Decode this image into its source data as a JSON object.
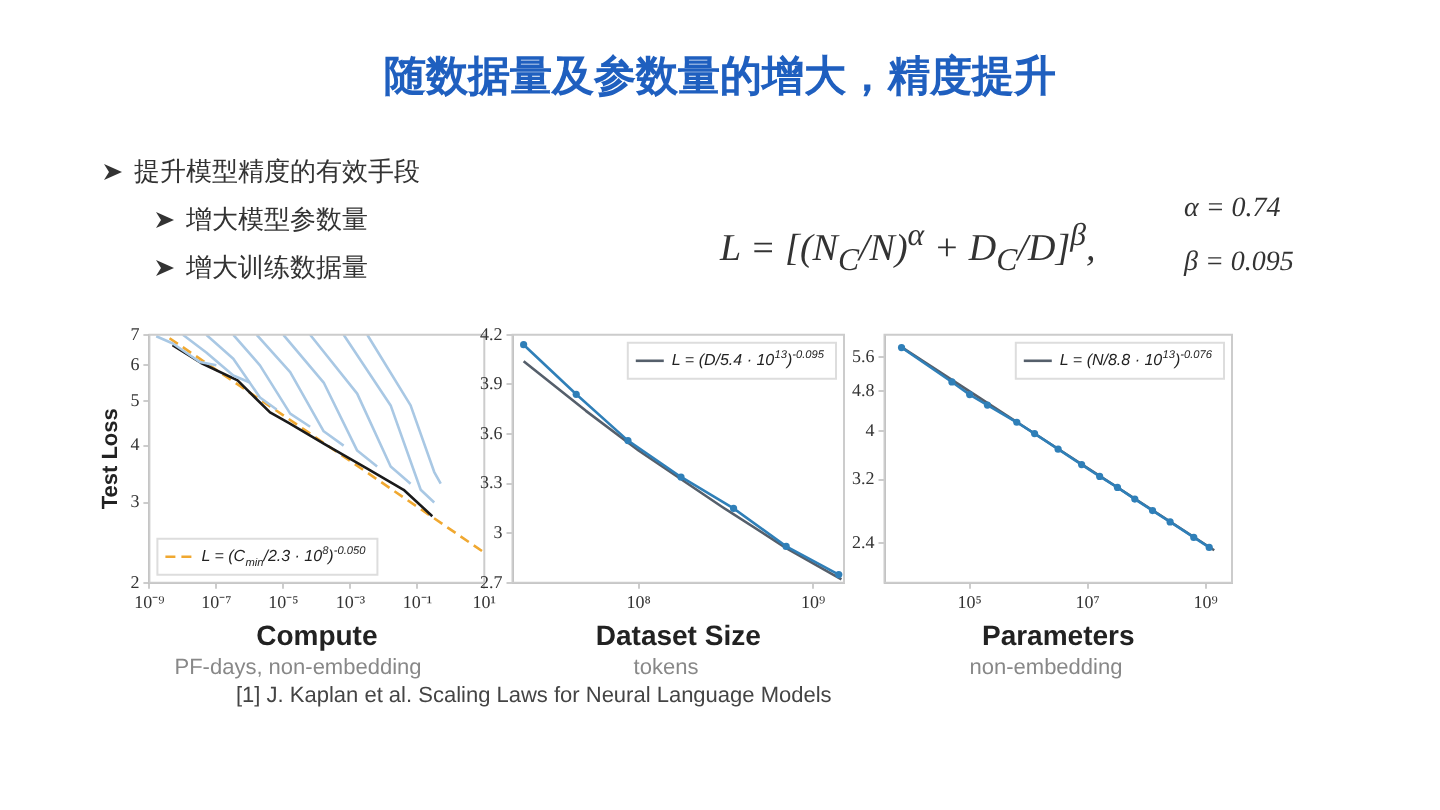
{
  "chart_data": [
    {
      "type": "other",
      "title": "随数据量及参数量的增大，精度提升",
      "annotations": [
        "提升模型精度的有效手段",
        "增大模型参数量",
        "增大训练数据量",
        "L = [(N$_{C}$/N)$^{α}$ + D$_{C}$/D]$^{β}$,",
        "α = 0.74",
        "β = 0.095",
        "[1] J. Kaplan et al. Scaling Laws for Neural Language Models"
      ]
    },
    {
      "type": "line",
      "log": "xy",
      "xlabel": "Compute",
      "ylabel": "Test Loss",
      "annotations": [
        "PF-days, non-embedding"
      ],
      "xlim": [
        1e-09,
        10
      ],
      "ylim": [
        2,
        7
      ],
      "xticks": [
        {
          "value": 1e-09,
          "label": "10⁻⁹"
        },
        {
          "value": 1e-07,
          "label": "10⁻⁷"
        },
        {
          "value": 1e-05,
          "label": "10⁻⁵"
        },
        {
          "value": 0.001,
          "label": "10⁻³"
        },
        {
          "value": 0.1,
          "label": "10⁻¹"
        },
        {
          "value": 10,
          "label": "10¹"
        }
      ],
      "yticks": [
        2,
        3,
        4,
        5,
        6,
        7
      ],
      "grid": false,
      "legend": "bottom left",
      "marker": "none",
      "series": [
        {
          "color": "#a9c8e4",
          "x": [
            1.6e-09,
            5e-09,
            3.2e-08,
            1e-07
          ],
          "values": [
            6.95,
            6.7,
            6.1,
            6.0
          ]
        },
        {
          "color": "#a9c8e4",
          "x": [
            1e-08,
            5e-08,
            3.2e-07,
            1e-06
          ],
          "values": [
            7.0,
            6.4,
            5.7,
            5.5
          ]
        },
        {
          "color": "#a9c8e4",
          "x": [
            5e-08,
            3.2e-07,
            2e-06,
            6.3e-06
          ],
          "values": [
            7.0,
            6.2,
            5.1,
            4.8
          ]
        },
        {
          "color": "#a9c8e4",
          "x": [
            3.2e-07,
            2e-06,
            1.6e-05,
            6.3e-05
          ],
          "values": [
            7.0,
            6.0,
            4.7,
            4.4
          ]
        },
        {
          "color": "#a9c8e4",
          "x": [
            1.6e-06,
            1.6e-05,
            0.00016,
            0.00063
          ],
          "values": [
            7.0,
            5.8,
            4.3,
            4.0
          ]
        },
        {
          "color": "#a9c8e4",
          "x": [
            1e-05,
            0.00016,
            0.0016,
            0.0063
          ],
          "values": [
            7.0,
            5.5,
            3.9,
            3.6
          ]
        },
        {
          "color": "#a9c8e4",
          "x": [
            6.3e-05,
            0.0016,
            0.016,
            0.063
          ],
          "values": [
            7.0,
            5.2,
            3.6,
            3.3
          ]
        },
        {
          "color": "#a9c8e4",
          "x": [
            0.00063,
            0.016,
            0.126,
            0.32
          ],
          "values": [
            7.0,
            4.9,
            3.2,
            3.0
          ]
        },
        {
          "color": "#a9c8e4",
          "x": [
            0.0032,
            0.063,
            0.32,
            0.5
          ],
          "values": [
            7.0,
            4.9,
            3.5,
            3.3
          ]
        },
        {
          "color": "#1a1a1a",
          "x": [
            4.9e-09,
            3.5e-08,
            4.3e-07,
            4e-06,
            1.4e-05,
            0.00017,
            0.0032,
            0.039,
            0.28
          ],
          "values": [
            6.64,
            6.07,
            5.56,
            4.73,
            4.49,
            4.03,
            3.56,
            3.2,
            2.8
          ]
        },
        {
          "name": "L = (C$_{min}$/2.3 · 10$^{8}$)$^{-0.050}$",
          "color": "#f0a830",
          "line_style": "dashed",
          "x": [
            4e-09,
            1e-05,
            10
          ],
          "values": [
            6.88,
            4.66,
            2.33
          ]
        }
      ]
    },
    {
      "type": "line",
      "log": "x",
      "xlabel": "Dataset Size",
      "annotations": [
        "tokens"
      ],
      "xlim": [
        19000000.0,
        1500000000.0
      ],
      "ylim": [
        2.7,
        4.2
      ],
      "xticks": [
        {
          "value": 100000000,
          "label": "10⁸"
        },
        {
          "value": 1000000000,
          "label": "10⁹"
        }
      ],
      "yticks": [
        2.7,
        3.0,
        3.3,
        3.6,
        3.9,
        4.2
      ],
      "grid": false,
      "legend": "top right",
      "marker": "circle",
      "series": [
        {
          "color": "#2f7fb8",
          "x": [
            22000000.0,
            44000000.0,
            87000000.0,
            175000000.0,
            350000000.0,
            700000000.0,
            1400000000.0
          ],
          "values": [
            4.14,
            3.84,
            3.56,
            3.34,
            3.15,
            2.92,
            2.75
          ]
        },
        {
          "name": "L = (D/5.4 · 10$^{13}$)$^{-0.095}$",
          "color": "#555f6b",
          "marker": "none",
          "x": [
            22000000.0,
            50000000.0,
            100000000.0,
            300000000.0,
            700000000.0,
            1450000000.0
          ],
          "values": [
            4.04,
            3.74,
            3.5,
            3.16,
            2.91,
            2.72
          ]
        }
      ]
    },
    {
      "type": "line",
      "log": "xy",
      "xlabel": "Parameters",
      "annotations": [
        "non-embedding"
      ],
      "xlim": [
        3600,
        2800000000.0
      ],
      "ylim": [
        2.0,
        6.2
      ],
      "xticks": [
        {
          "value": 100000,
          "label": "10⁵"
        },
        {
          "value": 10000000,
          "label": "10⁷"
        },
        {
          "value": 1000000000,
          "label": "10⁹"
        }
      ],
      "yticks": [
        2.4,
        3.2,
        4.0,
        4.8,
        5.6
      ],
      "grid": false,
      "legend": "top right",
      "marker": "circle",
      "series": [
        {
          "color": "#2f7fb8",
          "x": [
            7000,
            50000,
            100000,
            200000,
            630000,
            1260000,
            3160000,
            7900000,
            16000000,
            32000000,
            63000000,
            126000000,
            250000000,
            630000000,
            1150000000
          ],
          "values": [
            5.85,
            5.0,
            4.72,
            4.5,
            4.16,
            3.95,
            3.68,
            3.43,
            3.25,
            3.09,
            2.93,
            2.78,
            2.64,
            2.46,
            2.35
          ]
        },
        {
          "name": "L = (N/8.8 · 10$^{13}$)$^{-0.076}$",
          "color": "#555f6b",
          "marker": "none",
          "x": [
            7000,
            1000000,
            1400000000
          ],
          "values": [
            5.86,
            4.02,
            2.32
          ]
        }
      ]
    }
  ]
}
